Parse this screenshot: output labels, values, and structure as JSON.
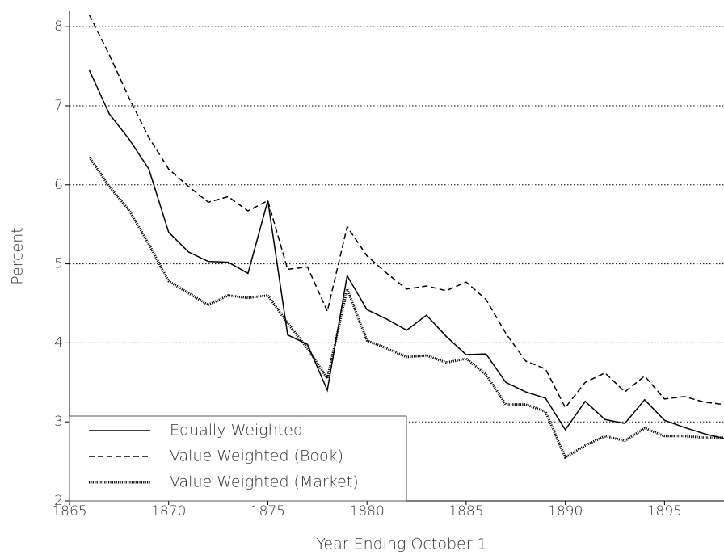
{
  "chart_data": {
    "type": "line",
    "xlabel": "Year Ending October 1",
    "ylabel": "Percent",
    "x": [
      1866,
      1867,
      1868,
      1869,
      1870,
      1871,
      1872,
      1873,
      1874,
      1875,
      1876,
      1877,
      1878,
      1879,
      1880,
      1881,
      1882,
      1883,
      1884,
      1885,
      1886,
      1887,
      1888,
      1889,
      1890,
      1891,
      1892,
      1893,
      1894,
      1895,
      1896,
      1897,
      1898
    ],
    "series": [
      {
        "name": "Equally Weighted",
        "color": "#000000",
        "linestyle": "solid",
        "values": [
          7.45,
          6.9,
          6.58,
          6.2,
          5.4,
          5.15,
          5.03,
          5.02,
          4.88,
          5.8,
          4.1,
          3.98,
          3.4,
          4.85,
          4.42,
          4.3,
          4.16,
          4.35,
          4.08,
          3.85,
          3.86,
          3.5,
          3.38,
          3.3,
          2.9,
          3.26,
          3.03,
          2.98,
          3.28,
          3.02,
          2.93,
          2.85,
          2.79
        ]
      },
      {
        "name": "Value Weighted (Book)",
        "color": "#000000",
        "linestyle": "dashed",
        "values": [
          8.15,
          7.65,
          7.1,
          6.6,
          6.2,
          5.98,
          5.78,
          5.85,
          5.67,
          5.8,
          4.93,
          4.96,
          4.4,
          5.47,
          5.1,
          4.88,
          4.68,
          4.72,
          4.66,
          4.77,
          4.55,
          4.12,
          3.77,
          3.67,
          3.18,
          3.5,
          3.62,
          3.38,
          3.58,
          3.29,
          3.32,
          3.25,
          3.22
        ]
      },
      {
        "name": "Value Weighted (Market)",
        "color": "#000000",
        "linestyle": "dotted",
        "values": [
          6.35,
          5.98,
          5.68,
          5.25,
          4.78,
          4.63,
          4.48,
          4.6,
          4.57,
          4.6,
          4.25,
          3.93,
          3.55,
          4.68,
          4.03,
          3.93,
          3.82,
          3.84,
          3.75,
          3.8,
          3.6,
          3.22,
          3.22,
          3.13,
          2.55,
          2.7,
          2.82,
          2.76,
          2.92,
          2.82,
          2.82,
          2.8,
          2.8
        ]
      }
    ],
    "xlim": [
      1865,
      1898
    ],
    "xticks": [
      1865,
      1870,
      1875,
      1880,
      1885,
      1890,
      1895
    ],
    "ylim": [
      2,
      8.2
    ],
    "yticks": [
      2,
      3,
      4,
      5,
      6,
      7,
      8
    ],
    "grid": true,
    "legend": "lower left"
  }
}
